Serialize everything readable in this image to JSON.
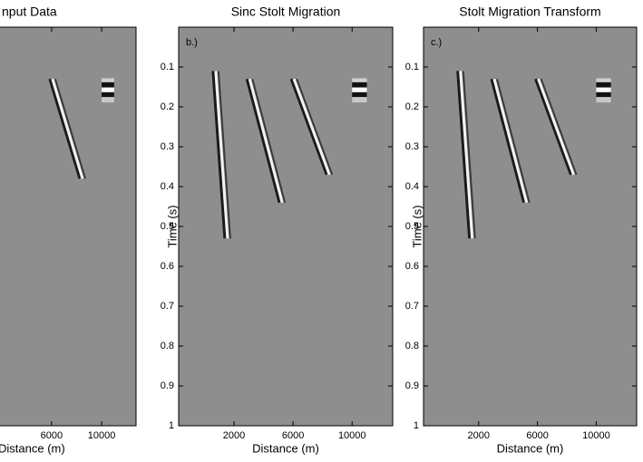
{
  "chart_data": [
    {
      "type": "image",
      "title": "nput Data",
      "x_label": "Distance (m)",
      "xlim": [
        -1750,
        12750
      ],
      "ylim": [
        0,
        1
      ],
      "xticks": [
        6000,
        10000
      ]
    },
    {
      "type": "image",
      "title": "Sinc Stolt Migration",
      "panel_label": "b.)",
      "x_label": "Distance (m)",
      "y_label": "Time (s)",
      "xlim": [
        -1750,
        12750
      ],
      "ylim": [
        0,
        1
      ],
      "xticks": [
        2000,
        6000,
        10000
      ],
      "yticks": [
        0.1,
        0.2,
        0.3,
        0.4,
        0.5,
        0.6,
        0.7,
        0.8,
        0.9,
        1
      ]
    },
    {
      "type": "image",
      "title": "Stolt Migration Transform",
      "panel_label": "c.)",
      "x_label": "Distance (m)",
      "y_label": "Time (s)",
      "xlim": [
        -1750,
        12750
      ],
      "ylim": [
        0,
        1
      ],
      "xticks": [
        2000,
        6000,
        10000
      ],
      "yticks": [
        0.1,
        0.2,
        0.3,
        0.4,
        0.5,
        0.6,
        0.7,
        0.8,
        0.9,
        1
      ]
    }
  ]
}
